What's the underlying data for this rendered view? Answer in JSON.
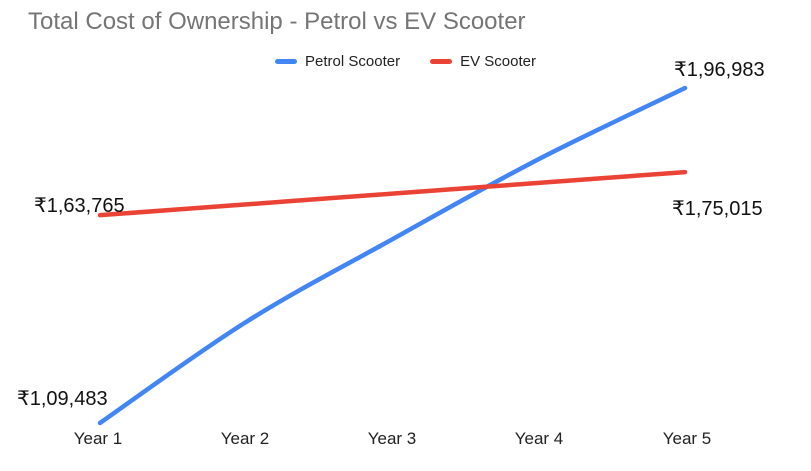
{
  "chart": {
    "title": "Total Cost of Ownership - Petrol vs EV Scooter",
    "title_color": "#757575",
    "background": "#ffffff"
  },
  "legend": {
    "items": [
      {
        "label": "Petrol Scooter",
        "color": "#4285F4"
      },
      {
        "label": "EV Scooter",
        "color": "#EA4335"
      }
    ]
  },
  "x_axis": {
    "labels": [
      "Year 1",
      "Year 2",
      "Year 3",
      "Year 4",
      "Year 5"
    ]
  },
  "data_labels": {
    "petrol_start": "₹1,09,483",
    "petrol_end": "₹1,96,983",
    "ev_start": "₹1,63,765",
    "ev_end": "₹1,75,015"
  },
  "chart_data": {
    "type": "line",
    "title": "Total Cost of Ownership - Petrol vs EV Scooter",
    "categories": [
      "Year 1",
      "Year 2",
      "Year 3",
      "Year 4",
      "Year 5"
    ],
    "series": [
      {
        "name": "Petrol Scooter",
        "color": "#4285F4",
        "values": [
          109483,
          135900,
          157500,
          178400,
          196983
        ],
        "endpoint_labels": [
          "₹1,09,483",
          "₹1,96,983"
        ]
      },
      {
        "name": "EV Scooter",
        "color": "#EA4335",
        "values": [
          163765,
          166578,
          169390,
          172203,
          175015
        ],
        "endpoint_labels": [
          "₹1,63,765",
          "₹1,75,015"
        ]
      }
    ],
    "line_style": "smooth",
    "legend_position": "top-center",
    "grid": false,
    "y_axis_visible": false,
    "data_labels_shown": "first and last point of each series",
    "ylim": [
      109483,
      196983
    ]
  }
}
